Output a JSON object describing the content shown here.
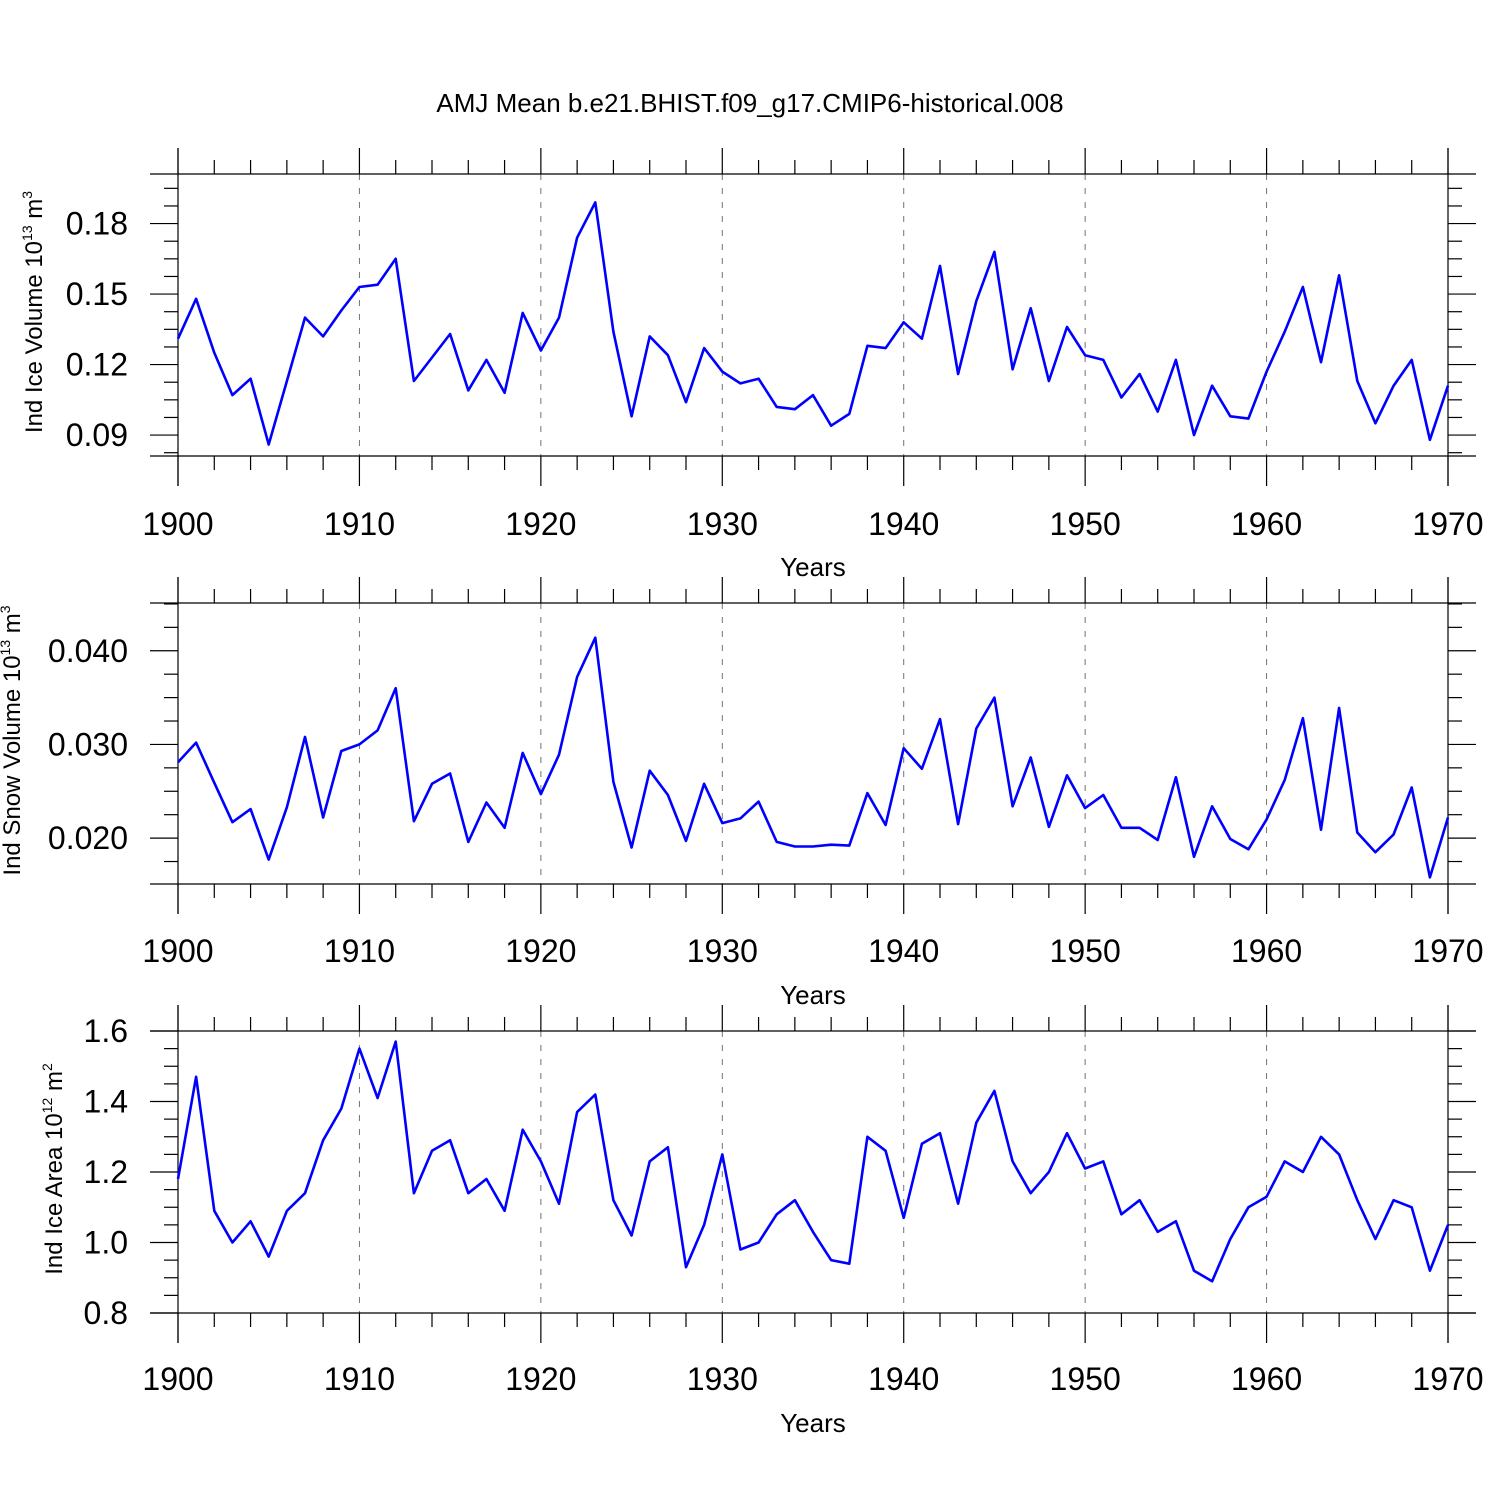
{
  "title": "AMJ Mean b.e21.BHIST.f09_g17.CMIP6-historical.008",
  "line_color": "#0000ff",
  "chart_data": [
    {
      "type": "line",
      "name": "ice-volume",
      "ylabel_main": "Ind Ice Volume 10",
      "ylabel_exp": "13",
      "ylabel_unit": " m",
      "ylabel_unit_exp": "3",
      "xlabel": "Years",
      "xlim": [
        1900,
        1970
      ],
      "ylim": [
        0.0811,
        0.2011
      ],
      "yticks": [
        0.09,
        0.12,
        0.15,
        0.18
      ],
      "ytick_labels": [
        "0.09",
        "0.12",
        "0.15",
        "0.18"
      ],
      "xticks": [
        1900,
        1910,
        1920,
        1930,
        1940,
        1950,
        1960,
        1970
      ],
      "xtick_labels": [
        "1900",
        "1910",
        "1920",
        "1930",
        "1940",
        "1950",
        "1960",
        "1970"
      ],
      "x_start": 1900,
      "values": [
        0.131,
        0.148,
        0.125,
        0.107,
        0.114,
        0.086,
        0.113,
        0.14,
        0.132,
        0.143,
        0.153,
        0.154,
        0.165,
        0.113,
        0.123,
        0.133,
        0.109,
        0.122,
        0.108,
        0.142,
        0.126,
        0.14,
        0.174,
        0.189,
        0.134,
        0.098,
        0.132,
        0.124,
        0.104,
        0.127,
        0.117,
        0.112,
        0.114,
        0.102,
        0.101,
        0.107,
        0.094,
        0.099,
        0.128,
        0.127,
        0.138,
        0.131,
        0.162,
        0.116,
        0.147,
        0.168,
        0.118,
        0.144,
        0.113,
        0.136,
        0.124,
        0.122,
        0.106,
        0.116,
        0.1,
        0.122,
        0.09,
        0.111,
        0.098,
        0.097,
        0.117,
        0.134,
        0.153,
        0.121,
        0.158,
        0.113,
        0.095,
        0.111,
        0.122,
        0.088,
        0.111
      ]
    },
    {
      "type": "line",
      "name": "snow-volume",
      "ylabel_main": "Ind Snow Volume 10",
      "ylabel_exp": "13",
      "ylabel_unit": " m",
      "ylabel_unit_exp": "3",
      "xlabel": "Years",
      "xlim": [
        1900,
        1970
      ],
      "ylim": [
        0.0151,
        0.0451
      ],
      "yticks": [
        0.02,
        0.03,
        0.04
      ],
      "ytick_labels": [
        "0.020",
        "0.030",
        "0.040"
      ],
      "xticks": [
        1900,
        1910,
        1920,
        1930,
        1940,
        1950,
        1960,
        1970
      ],
      "xtick_labels": [
        "1900",
        "1910",
        "1920",
        "1930",
        "1940",
        "1950",
        "1960",
        "1970"
      ],
      "x_start": 1900,
      "values": [
        0.0281,
        0.0302,
        0.0259,
        0.0217,
        0.0231,
        0.0177,
        0.0233,
        0.0308,
        0.0222,
        0.0293,
        0.03,
        0.0315,
        0.036,
        0.0218,
        0.0258,
        0.0269,
        0.0196,
        0.0238,
        0.0211,
        0.0291,
        0.0247,
        0.0289,
        0.0372,
        0.0414,
        0.026,
        0.019,
        0.0272,
        0.0246,
        0.0197,
        0.0258,
        0.0216,
        0.0221,
        0.0239,
        0.0196,
        0.0191,
        0.0191,
        0.0193,
        0.0192,
        0.0248,
        0.0214,
        0.0296,
        0.0274,
        0.0327,
        0.0215,
        0.0317,
        0.035,
        0.0234,
        0.0286,
        0.0212,
        0.0267,
        0.0232,
        0.0246,
        0.0211,
        0.0211,
        0.0198,
        0.0265,
        0.018,
        0.0234,
        0.0199,
        0.0188,
        0.022,
        0.0262,
        0.0328,
        0.0209,
        0.0339,
        0.0206,
        0.0185,
        0.0204,
        0.0254,
        0.0158,
        0.0222
      ]
    },
    {
      "type": "line",
      "name": "ice-area",
      "ylabel_main": "Ind Ice Area 10",
      "ylabel_exp": "12",
      "ylabel_unit": " m",
      "ylabel_unit_exp": "2",
      "xlabel": "Years",
      "xlim": [
        1900,
        1970
      ],
      "ylim": [
        0.8,
        1.6
      ],
      "yticks": [
        0.8,
        1.0,
        1.2,
        1.4,
        1.6
      ],
      "ytick_labels": [
        "0.8",
        "1.0",
        "1.2",
        "1.4",
        "1.6"
      ],
      "xticks": [
        1900,
        1910,
        1920,
        1930,
        1940,
        1950,
        1960,
        1970
      ],
      "xtick_labels": [
        "1900",
        "1910",
        "1920",
        "1930",
        "1940",
        "1950",
        "1960",
        "1970"
      ],
      "x_start": 1900,
      "values": [
        1.18,
        1.47,
        1.09,
        1.0,
        1.06,
        0.96,
        1.09,
        1.14,
        1.29,
        1.38,
        1.55,
        1.41,
        1.57,
        1.14,
        1.26,
        1.29,
        1.14,
        1.18,
        1.09,
        1.32,
        1.23,
        1.11,
        1.37,
        1.42,
        1.12,
        1.02,
        1.23,
        1.27,
        0.93,
        1.05,
        1.25,
        0.98,
        1.0,
        1.08,
        1.12,
        1.03,
        0.95,
        0.94,
        1.3,
        1.26,
        1.07,
        1.28,
        1.31,
        1.11,
        1.34,
        1.43,
        1.23,
        1.14,
        1.2,
        1.31,
        1.21,
        1.23,
        1.08,
        1.12,
        1.03,
        1.06,
        0.92,
        0.89,
        1.01,
        1.1,
        1.13,
        1.23,
        1.2,
        1.3,
        1.25,
        1.12,
        1.01,
        1.12,
        1.1,
        0.92,
        1.05
      ]
    }
  ]
}
